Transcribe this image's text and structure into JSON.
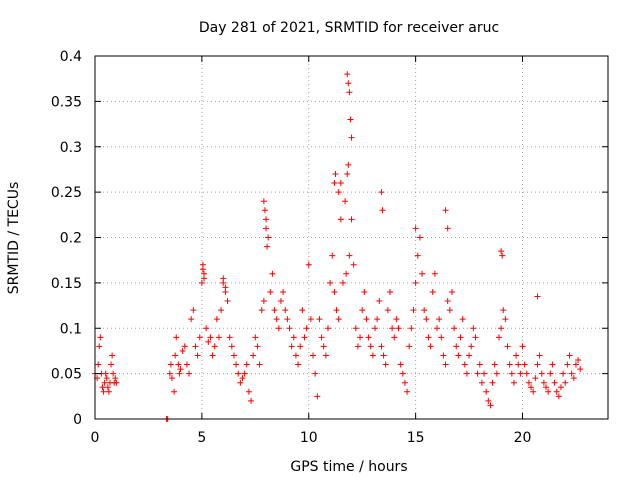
{
  "chart_data": {
    "type": "scatter",
    "title": "Day 281 of 2021, SRMTID for receiver aruc",
    "xlabel": "GPS time / hours",
    "ylabel": "SRMTID / TECUs",
    "xlim": [
      0,
      24
    ],
    "ylim": [
      0,
      0.4
    ],
    "xticks": [
      0,
      5,
      10,
      15,
      20
    ],
    "xtick_labels": [
      "0",
      "5",
      "10",
      "15",
      "20"
    ],
    "yticks": [
      0,
      0.05,
      0.1,
      0.15,
      0.2,
      0.25,
      0.3,
      0.35,
      0.4
    ],
    "ytick_labels": [
      "0",
      "0.05",
      "0.1",
      "0.15",
      "0.2",
      "0.25",
      "0.3",
      "0.35",
      "0.4"
    ],
    "grid": true,
    "marker": "+",
    "color": "#ff0000",
    "series": [
      {
        "name": "SRMTID",
        "x": [
          0.0,
          0.1,
          0.15,
          0.2,
          0.25,
          0.3,
          0.35,
          0.4,
          0.45,
          0.5,
          0.55,
          0.6,
          0.65,
          0.7,
          0.75,
          0.8,
          0.85,
          0.9,
          0.95,
          1.0,
          3.35,
          3.4,
          3.5,
          3.55,
          3.6,
          3.7,
          3.75,
          3.8,
          3.9,
          3.95,
          4.0,
          4.1,
          4.2,
          4.3,
          4.4,
          4.5,
          4.6,
          4.7,
          4.8,
          4.9,
          5.0,
          5.05,
          5.1,
          5.2,
          5.3,
          5.4,
          5.5,
          5.6,
          5.7,
          5.8,
          5.9,
          6.0,
          6.1,
          6.2,
          6.3,
          6.4,
          6.5,
          6.6,
          6.7,
          6.8,
          6.9,
          7.0,
          7.1,
          7.2,
          7.3,
          7.4,
          7.5,
          7.6,
          7.7,
          7.8,
          7.9,
          8.0,
          8.1,
          8.2,
          8.3,
          8.4,
          8.5,
          8.6,
          8.7,
          8.8,
          8.9,
          9.0,
          9.1,
          9.2,
          9.3,
          9.4,
          9.5,
          9.6,
          9.7,
          9.8,
          9.9,
          10.0,
          10.1,
          10.2,
          10.3,
          10.4,
          10.5,
          10.6,
          10.7,
          10.8,
          10.9,
          11.0,
          11.1,
          11.2,
          11.3,
          11.4,
          11.5,
          11.6,
          11.7,
          11.75,
          11.8,
          11.85,
          11.9,
          12.0,
          12.1,
          12.2,
          12.3,
          12.4,
          12.5,
          12.6,
          12.7,
          12.8,
          12.9,
          13.0,
          13.1,
          13.2,
          13.3,
          13.4,
          13.5,
          13.6,
          13.7,
          13.8,
          13.9,
          14.0,
          14.1,
          14.2,
          14.3,
          14.4,
          14.5,
          14.6,
          14.7,
          14.8,
          14.9,
          15.0,
          15.1,
          15.2,
          15.3,
          15.4,
          15.5,
          15.6,
          15.7,
          15.8,
          15.9,
          16.0,
          16.1,
          16.2,
          16.3,
          16.4,
          16.5,
          16.6,
          16.7,
          16.8,
          16.9,
          17.0,
          17.1,
          17.2,
          17.3,
          17.4,
          17.5,
          17.6,
          17.7,
          17.8,
          17.9,
          18.0,
          18.1,
          18.2,
          18.3,
          18.4,
          18.5,
          18.6,
          18.7,
          18.8,
          18.9,
          19.0,
          19.1,
          19.2,
          19.3,
          19.4,
          19.5,
          19.6,
          19.7,
          19.8,
          19.9,
          20.0,
          20.1,
          20.2,
          20.3,
          20.4,
          20.5,
          20.6,
          20.7,
          20.8,
          20.9,
          21.0,
          21.1,
          21.2,
          21.3,
          21.4,
          21.5,
          21.6,
          21.7,
          21.8,
          21.9,
          22.0,
          22.1,
          22.2,
          22.3,
          22.4,
          22.5,
          22.6,
          22.7,
          7.9,
          7.95,
          8.0,
          8.05,
          11.8,
          11.85,
          11.9,
          11.95,
          12.0,
          11.2,
          11.25,
          11.4,
          11.5,
          13.4,
          13.45,
          16.4,
          16.5,
          15.0,
          19.0,
          19.05,
          20.7,
          5.05,
          5.1,
          6.0,
          6.1
        ],
        "y": [
          0.05,
          0.045,
          0.06,
          0.08,
          0.09,
          0.05,
          0.035,
          0.03,
          0.04,
          0.05,
          0.045,
          0.035,
          0.03,
          0.04,
          0.06,
          0.07,
          0.05,
          0.04,
          0.045,
          0.04,
          0.0,
          0.0,
          0.05,
          0.06,
          0.045,
          0.03,
          0.07,
          0.09,
          0.06,
          0.05,
          0.055,
          0.075,
          0.08,
          0.06,
          0.05,
          0.11,
          0.12,
          0.08,
          0.07,
          0.09,
          0.15,
          0.17,
          0.16,
          0.1,
          0.085,
          0.09,
          0.07,
          0.08,
          0.11,
          0.09,
          0.12,
          0.15,
          0.14,
          0.13,
          0.09,
          0.08,
          0.07,
          0.06,
          0.05,
          0.04,
          0.045,
          0.05,
          0.06,
          0.03,
          0.02,
          0.07,
          0.09,
          0.08,
          0.06,
          0.12,
          0.13,
          0.21,
          0.2,
          0.14,
          0.16,
          0.12,
          0.11,
          0.1,
          0.13,
          0.14,
          0.12,
          0.11,
          0.1,
          0.08,
          0.09,
          0.07,
          0.06,
          0.08,
          0.12,
          0.09,
          0.1,
          0.17,
          0.11,
          0.07,
          0.05,
          0.025,
          0.11,
          0.09,
          0.08,
          0.07,
          0.1,
          0.15,
          0.18,
          0.14,
          0.12,
          0.11,
          0.22,
          0.15,
          0.24,
          0.16,
          0.27,
          0.28,
          0.18,
          0.22,
          0.17,
          0.1,
          0.08,
          0.09,
          0.12,
          0.14,
          0.11,
          0.09,
          0.08,
          0.07,
          0.1,
          0.11,
          0.13,
          0.08,
          0.07,
          0.06,
          0.12,
          0.14,
          0.1,
          0.09,
          0.11,
          0.1,
          0.06,
          0.05,
          0.04,
          0.03,
          0.08,
          0.1,
          0.12,
          0.15,
          0.18,
          0.2,
          0.16,
          0.12,
          0.11,
          0.09,
          0.08,
          0.14,
          0.16,
          0.1,
          0.11,
          0.09,
          0.07,
          0.06,
          0.13,
          0.12,
          0.14,
          0.1,
          0.08,
          0.07,
          0.09,
          0.11,
          0.06,
          0.05,
          0.07,
          0.08,
          0.1,
          0.09,
          0.05,
          0.06,
          0.04,
          0.05,
          0.03,
          0.02,
          0.015,
          0.04,
          0.06,
          0.05,
          0.09,
          0.1,
          0.12,
          0.11,
          0.08,
          0.06,
          0.05,
          0.04,
          0.07,
          0.06,
          0.05,
          0.08,
          0.06,
          0.05,
          0.04,
          0.035,
          0.03,
          0.045,
          0.06,
          0.07,
          0.05,
          0.04,
          0.035,
          0.03,
          0.05,
          0.06,
          0.04,
          0.03,
          0.025,
          0.035,
          0.05,
          0.04,
          0.06,
          0.07,
          0.05,
          0.045,
          0.06,
          0.065,
          0.055,
          0.24,
          0.23,
          0.22,
          0.19,
          0.38,
          0.37,
          0.36,
          0.33,
          0.31,
          0.26,
          0.27,
          0.25,
          0.26,
          0.25,
          0.23,
          0.23,
          0.21,
          0.21,
          0.185,
          0.18,
          0.135,
          0.165,
          0.155,
          0.155,
          0.145
        ]
      }
    ]
  }
}
